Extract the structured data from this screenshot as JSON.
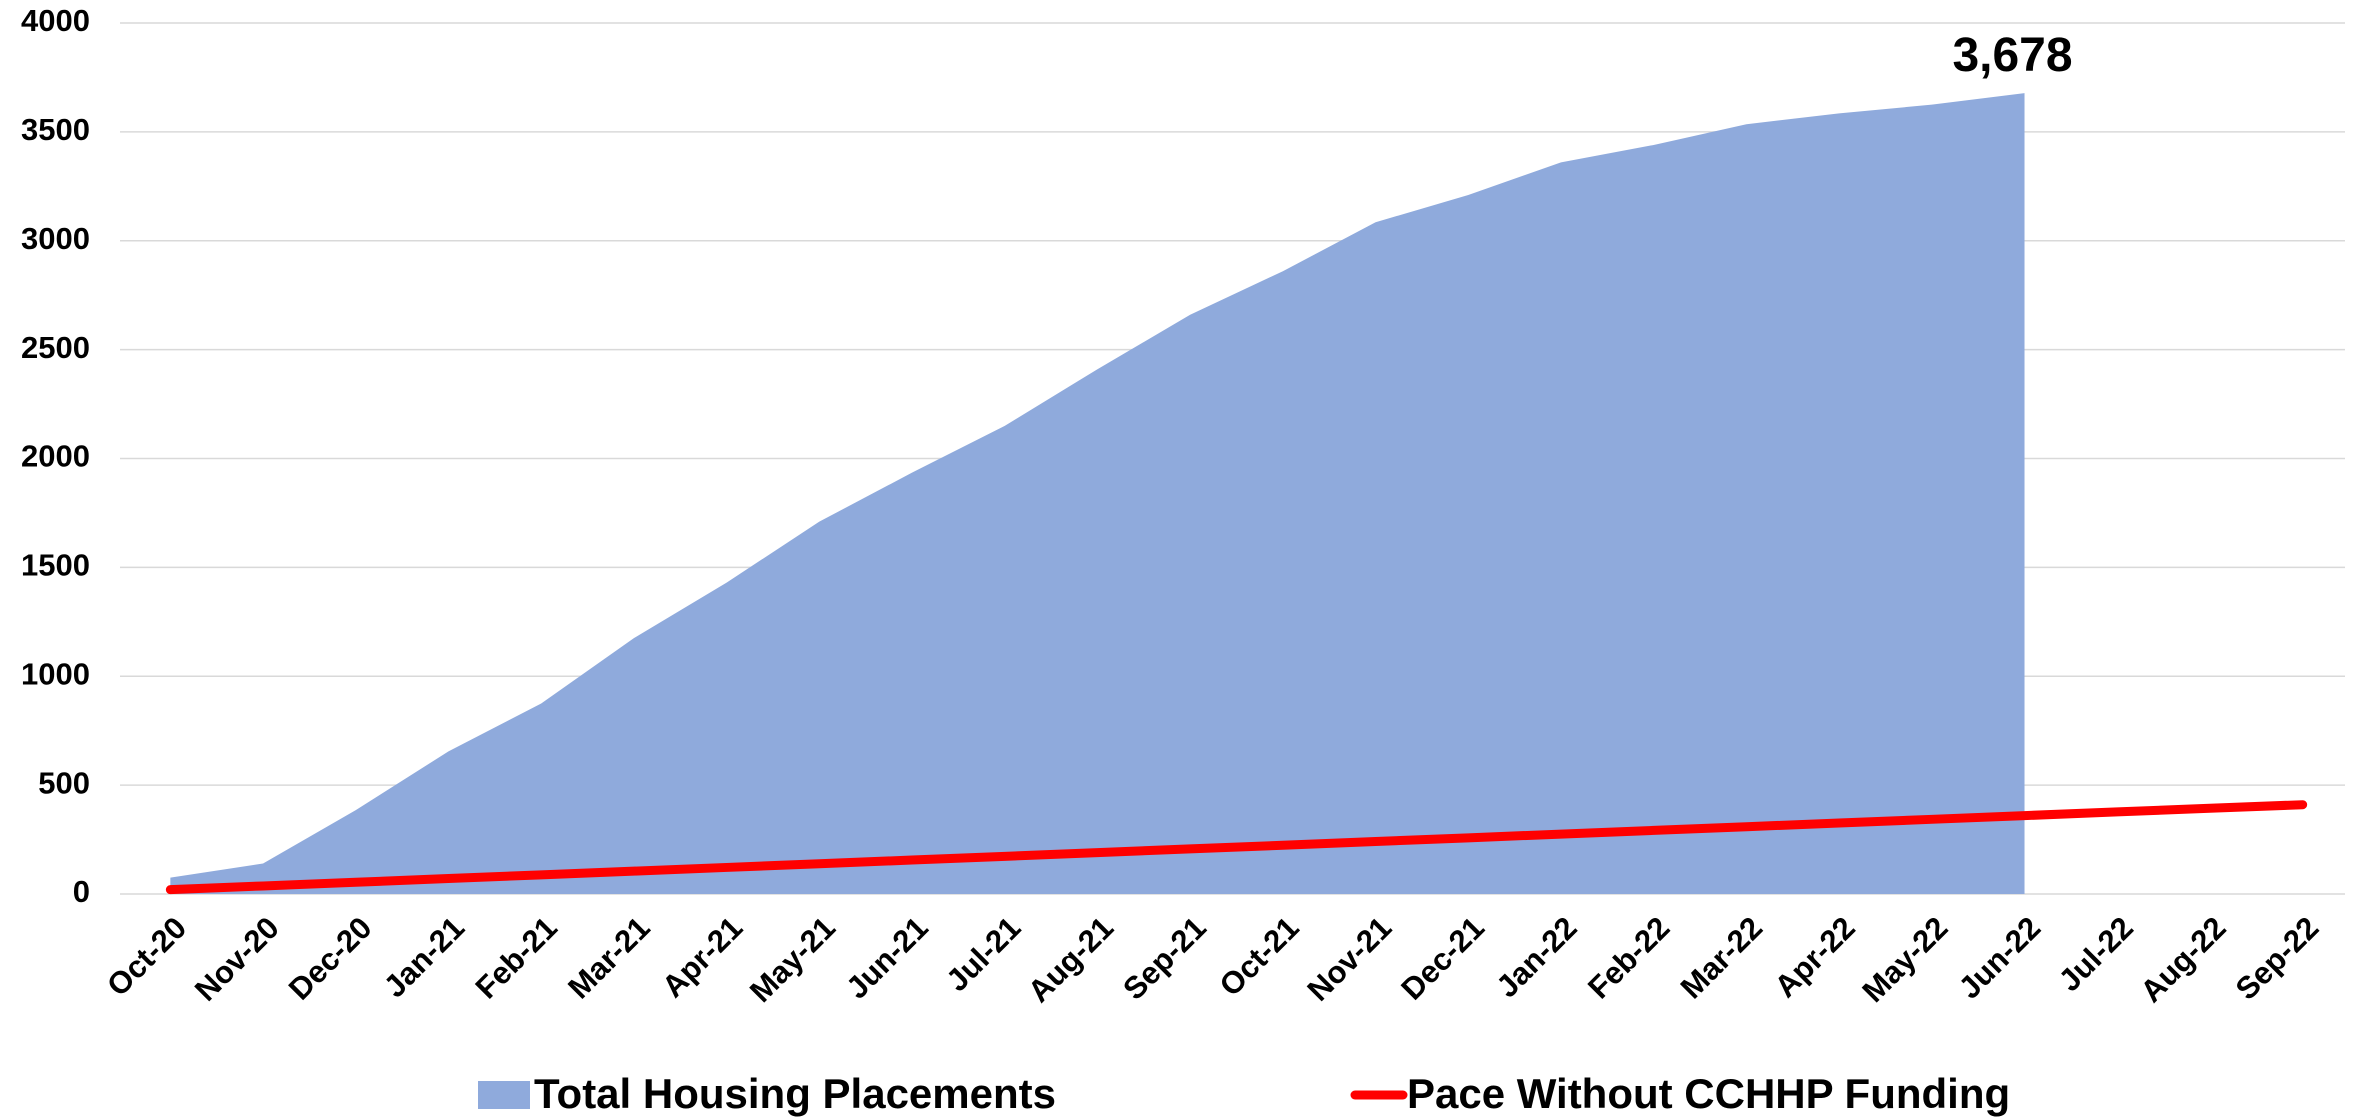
{
  "chart_data": {
    "type": "area_line",
    "categories": [
      "Oct-20",
      "Nov-20",
      "Dec-20",
      "Jan-21",
      "Feb-21",
      "Mar-21",
      "Apr-21",
      "May-21",
      "Jun-21",
      "Jul-21",
      "Aug-21",
      "Sep-21",
      "Oct-21",
      "Nov-21",
      "Dec-21",
      "Jan-22",
      "Feb-22",
      "Mar-22",
      "Apr-22",
      "May-22",
      "Jun-22",
      "Jul-22",
      "Aug-22",
      "Sep-22"
    ],
    "series": [
      {
        "name": "Total Housing Placements",
        "type": "area",
        "color": "#8faadc",
        "values": [
          75,
          140,
          385,
          655,
          875,
          1175,
          1430,
          1710,
          1935,
          2150,
          2410,
          2660,
          2860,
          3085,
          3210,
          3360,
          3440,
          3535,
          3585,
          3625,
          3678,
          null,
          null,
          null
        ],
        "value_labels": [
          null,
          null,
          null,
          null,
          null,
          null,
          null,
          null,
          null,
          null,
          null,
          null,
          null,
          null,
          null,
          null,
          null,
          null,
          null,
          null,
          "3,678",
          null,
          null,
          null
        ]
      },
      {
        "name": "Pace Without CCHHP Funding",
        "type": "line",
        "color": "#ff0000",
        "values": [
          20,
          37,
          54,
          71,
          88,
          105,
          122,
          139,
          156,
          173,
          190,
          207,
          224,
          241,
          258,
          275,
          292,
          309,
          326,
          343,
          360,
          377,
          394,
          410
        ]
      }
    ],
    "ylim": [
      0,
      4000
    ],
    "yticks": [
      0,
      500,
      1000,
      1500,
      2000,
      2500,
      3000,
      3500,
      4000
    ],
    "grid": true,
    "legend": "bottom"
  }
}
